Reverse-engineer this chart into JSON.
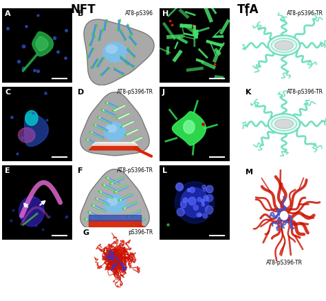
{
  "title_left": "NFT",
  "title_right": "TfA",
  "title_fontsize": 12,
  "title_fontweight": "bold",
  "label_fontsize": 8,
  "label_fontweight": "bold",
  "bg_color": "#ffffff",
  "annotation_B": "AT8-pS396",
  "annotation_D": "AT8-pS396-TR",
  "annotation_F": "AT8-pS396-TR",
  "annotation_G": "pS396-TR",
  "annotation_I": "AT8-pS396-TR",
  "annotation_K": "AT8-pS396-TR",
  "annotation_M": "AT8-pS396-TR",
  "cell_gray": "#9a9a9a",
  "cell_gray_light": "#c0c0c0",
  "nucleus_blue": "#7bbfe8",
  "nucleus_blue_light": "#b0d8f5",
  "green_fil": "#44cc44",
  "blue_fil": "#4488ff",
  "white_fil": "#ffffff",
  "red_band": "#dd2200",
  "blue_band": "#2244bb",
  "tfa_col": "#66ddbb",
  "tfa_body": "#e8f8f4",
  "red_m": "#cc1100"
}
